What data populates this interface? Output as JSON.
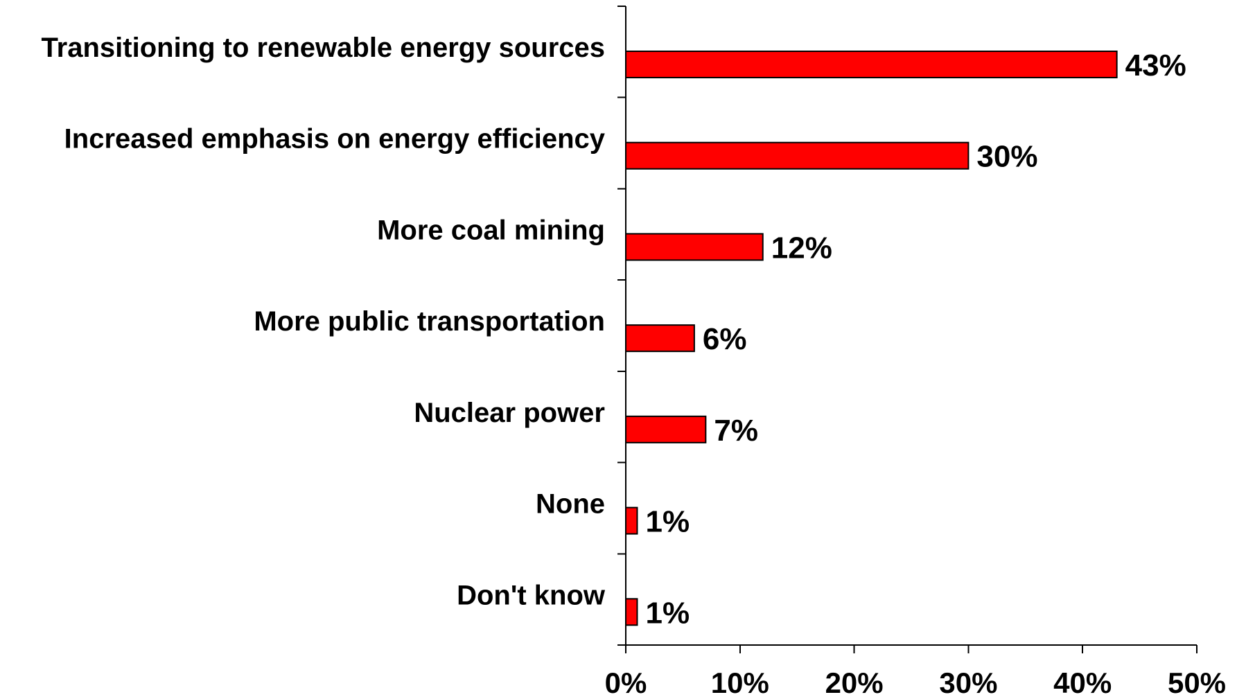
{
  "chart_data": {
    "type": "bar",
    "orientation": "horizontal",
    "categories": [
      "Transitioning to renewable energy sources",
      "Increased emphasis on energy efficiency",
      "More coal mining",
      "More public transportation",
      "Nuclear power",
      "None",
      "Don't know"
    ],
    "values": [
      43,
      30,
      12,
      6,
      7,
      1,
      1
    ],
    "data_labels": [
      "43%",
      "30%",
      "12%",
      "6%",
      "7%",
      "1%",
      "1%"
    ],
    "title": "",
    "xlabel": "",
    "ylabel": "",
    "xlim": [
      0,
      50
    ],
    "x_ticks": [
      0,
      10,
      20,
      30,
      40,
      50
    ],
    "x_tick_labels": [
      "0%",
      "10%",
      "20%",
      "30%",
      "40%",
      "50%"
    ],
    "grid": false,
    "legend": "none",
    "colors": {
      "bar_fill": "#ff0000",
      "bar_stroke": "#000000",
      "axis": "#000000",
      "text": "#000000"
    }
  }
}
